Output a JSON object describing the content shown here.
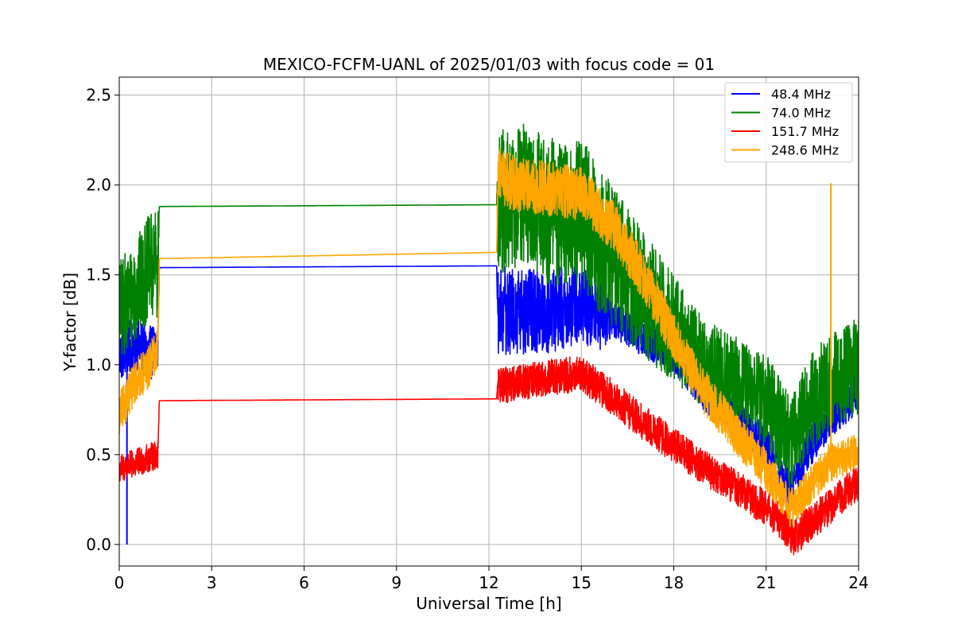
{
  "chart_data": {
    "type": "line",
    "title": "MEXICO-FCFM-UANL of 2025/01/03 with focus code = 01",
    "xlabel": "Universal Time [h]",
    "ylabel": "Y-factor [dB]",
    "xlim": [
      0,
      24
    ],
    "ylim": [
      -0.12,
      2.6
    ],
    "xticks": [
      0,
      3,
      6,
      9,
      12,
      15,
      18,
      21,
      24
    ],
    "yticks": [
      0.0,
      0.5,
      1.0,
      1.5,
      2.0,
      2.5
    ],
    "xtick_labels": [
      "0",
      "3",
      "6",
      "9",
      "12",
      "15",
      "18",
      "21",
      "24"
    ],
    "ytick_labels": [
      "0.0",
      "0.5",
      "1.0",
      "1.5",
      "2.0",
      "2.5"
    ],
    "grid": true,
    "legend_position": "top-right",
    "series": [
      {
        "name": " 48.4 MHz",
        "color": "#0000ff",
        "base": [
          [
            0,
            1.05
          ],
          [
            0.3,
            1.1
          ],
          [
            0.6,
            1.12
          ],
          [
            0.9,
            1.05
          ],
          [
            1.25,
            1.1
          ],
          [
            1.3,
            1.54
          ],
          [
            12.25,
            1.55
          ],
          [
            12.3,
            1.3
          ],
          [
            13,
            1.3
          ],
          [
            14,
            1.3
          ],
          [
            15,
            1.35
          ],
          [
            16,
            1.25
          ],
          [
            17,
            1.15
          ],
          [
            18,
            1.05
          ],
          [
            19,
            0.85
          ],
          [
            20,
            0.7
          ],
          [
            21,
            0.55
          ],
          [
            21.8,
            0.3
          ],
          [
            22.3,
            0.5
          ],
          [
            23,
            0.7
          ],
          [
            24,
            0.85
          ]
        ],
        "noise": [
          [
            0,
            0.15
          ],
          [
            1.25,
            0.15
          ],
          [
            1.3,
            0
          ],
          [
            12.25,
            0
          ],
          [
            12.3,
            0.25
          ],
          [
            15.6,
            0.22
          ],
          [
            16,
            0.1
          ],
          [
            24,
            0.12
          ]
        ],
        "spikes": [
          [
            0.25,
            0.0
          ],
          [
            0.25,
            1.1
          ]
        ]
      },
      {
        "name": " 74.0 MHz",
        "color": "#008000",
        "base": [
          [
            0,
            1.3
          ],
          [
            0.5,
            1.4
          ],
          [
            1.0,
            1.55
          ],
          [
            1.25,
            1.55
          ],
          [
            1.3,
            1.88
          ],
          [
            12.25,
            1.89
          ],
          [
            12.3,
            1.9
          ],
          [
            13,
            1.95
          ],
          [
            14,
            1.85
          ],
          [
            15,
            1.85
          ],
          [
            16,
            1.6
          ],
          [
            17,
            1.4
          ],
          [
            18,
            1.2
          ],
          [
            19,
            1.0
          ],
          [
            20,
            0.9
          ],
          [
            21,
            0.8
          ],
          [
            21.8,
            0.55
          ],
          [
            22.3,
            0.75
          ],
          [
            23,
            0.9
          ],
          [
            24,
            1.0
          ]
        ],
        "noise": [
          [
            0,
            0.28
          ],
          [
            1.25,
            0.3
          ],
          [
            1.3,
            0
          ],
          [
            12.25,
            0
          ],
          [
            12.3,
            0.4
          ],
          [
            15.5,
            0.42
          ],
          [
            17,
            0.35
          ],
          [
            19,
            0.25
          ],
          [
            24,
            0.28
          ]
        ],
        "spikes": []
      },
      {
        "name": "151.7 MHz",
        "color": "#ff0000",
        "base": [
          [
            0,
            0.42
          ],
          [
            0.5,
            0.45
          ],
          [
            1.25,
            0.5
          ],
          [
            1.3,
            0.8
          ],
          [
            12.25,
            0.81
          ],
          [
            12.3,
            0.88
          ],
          [
            13,
            0.9
          ],
          [
            14,
            0.93
          ],
          [
            15,
            0.95
          ],
          [
            16,
            0.82
          ],
          [
            17,
            0.68
          ],
          [
            18,
            0.55
          ],
          [
            19,
            0.43
          ],
          [
            20,
            0.32
          ],
          [
            21,
            0.2
          ],
          [
            21.5,
            0.12
          ],
          [
            21.9,
            0.03
          ],
          [
            22.3,
            0.1
          ],
          [
            23,
            0.2
          ],
          [
            24,
            0.35
          ]
        ],
        "noise": [
          [
            0,
            0.08
          ],
          [
            1.25,
            0.08
          ],
          [
            1.3,
            0
          ],
          [
            12.25,
            0
          ],
          [
            12.3,
            0.1
          ],
          [
            24,
            0.1
          ]
        ],
        "spikes": []
      },
      {
        "name": "248.6 MHz",
        "color": "#ffa500",
        "base": [
          [
            0,
            0.72
          ],
          [
            0.5,
            0.9
          ],
          [
            1.0,
            1.0
          ],
          [
            1.25,
            1.1
          ],
          [
            1.3,
            1.59
          ],
          [
            12.25,
            1.625
          ],
          [
            12.3,
            2.05
          ],
          [
            13,
            2.0
          ],
          [
            14,
            1.98
          ],
          [
            15,
            1.95
          ],
          [
            16,
            1.78
          ],
          [
            17,
            1.5
          ],
          [
            18,
            1.15
          ],
          [
            19,
            0.85
          ],
          [
            20,
            0.62
          ],
          [
            21,
            0.42
          ],
          [
            21.8,
            0.2
          ],
          [
            22.3,
            0.3
          ],
          [
            23,
            0.45
          ],
          [
            24,
            0.52
          ]
        ],
        "noise": [
          [
            0,
            0.12
          ],
          [
            1.25,
            0.12
          ],
          [
            1.3,
            0
          ],
          [
            12.25,
            0
          ],
          [
            12.3,
            0.16
          ],
          [
            24,
            0.1
          ]
        ],
        "spikes": [
          [
            23.1,
            2.01
          ]
        ]
      }
    ]
  }
}
